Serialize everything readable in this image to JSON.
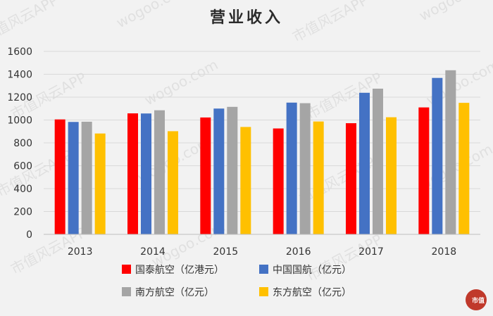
{
  "watermark": {
    "site": "wogoo.com",
    "brand": "市值风云APP",
    "logo_text": "市值"
  },
  "chart_data": {
    "type": "bar",
    "title": "营业收入",
    "xlabel": "",
    "ylabel": "",
    "ylim": [
      0,
      1600
    ],
    "yticks": [
      0,
      200,
      400,
      600,
      800,
      1000,
      1200,
      1400,
      1600
    ],
    "grid": true,
    "legend_position": "bottom",
    "categories": [
      "2013",
      "2014",
      "2015",
      "2016",
      "2017",
      "2018"
    ],
    "series": [
      {
        "name": "国泰航空（亿港元）",
        "color": "#ff0000",
        "values": [
          1005,
          1058,
          1022,
          926,
          972,
          1110
        ]
      },
      {
        "name": "中国国航（亿元）",
        "color": "#4472c4",
        "values": [
          983,
          1057,
          1100,
          1152,
          1238,
          1368
        ]
      },
      {
        "name": "南方航空（亿元）",
        "color": "#a5a5a5",
        "values": [
          985,
          1085,
          1115,
          1147,
          1274,
          1435
        ]
      },
      {
        "name": "东方航空（亿元）",
        "color": "#ffc000",
        "values": [
          882,
          902,
          939,
          987,
          1024,
          1150
        ]
      }
    ]
  }
}
